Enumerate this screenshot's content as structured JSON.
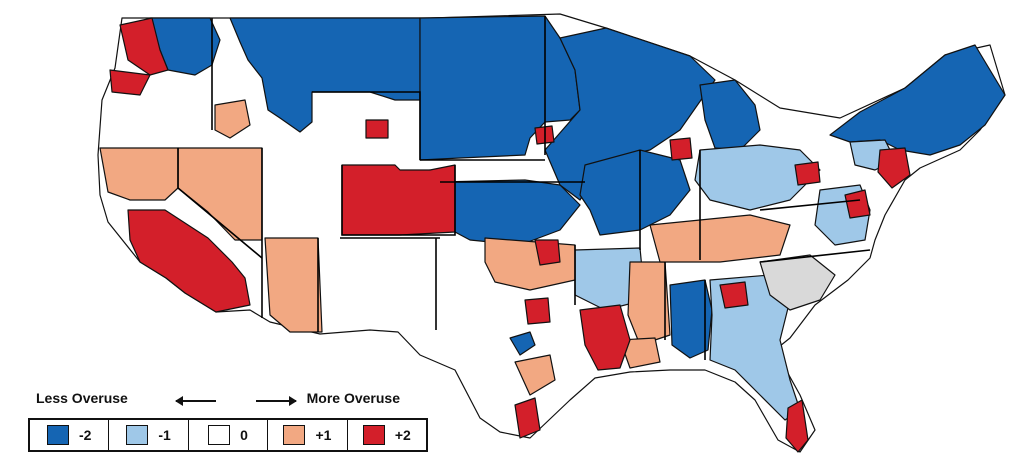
{
  "legend": {
    "less_label": "Less Overuse",
    "more_label": "More Overuse",
    "categories": [
      {
        "label": "-2",
        "color": "#1565b3"
      },
      {
        "label": "-1",
        "color": "#9fc8e8"
      },
      {
        "label": "0",
        "color": "#ffffff"
      },
      {
        "label": "+1",
        "color": "#f2a882"
      },
      {
        "label": "+2",
        "color": "#d31f2a"
      }
    ]
  },
  "colors": {
    "level_neg2": "#1565b3",
    "level_neg1": "#9fc8e8",
    "level_0": "#ffffff",
    "level_pos1": "#f2a882",
    "level_pos2": "#d31f2a",
    "no_data": "#d9d9d9",
    "border": "#111111"
  }
}
